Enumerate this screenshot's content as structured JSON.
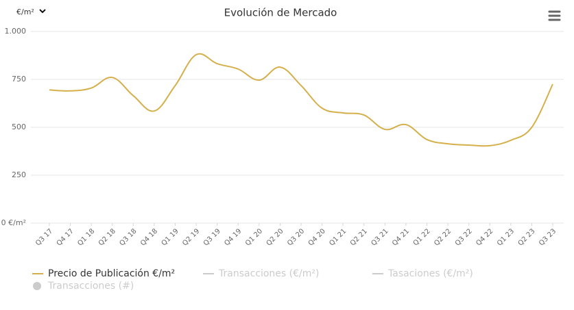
{
  "unit_selector": "€/m²",
  "chart_data": {
    "type": "line",
    "title": "Evolución de Mercado",
    "categories": [
      "Q3 17",
      "Q4 17",
      "Q1 18",
      "Q2 18",
      "Q3 18",
      "Q4 18",
      "Q1 19",
      "Q2 19",
      "Q3 19",
      "Q4 19",
      "Q1 20",
      "Q2 20",
      "Q3 20",
      "Q4 20",
      "Q1 21",
      "Q2 21",
      "Q3 21",
      "Q4 21",
      "Q1 22",
      "Q2 22",
      "Q3 22",
      "Q4 22",
      "Q1 23",
      "Q2 23",
      "Q3 23"
    ],
    "series": [
      {
        "name": "Precio de Publicación €/m²",
        "color": "#d4af4a",
        "values": [
          695,
          690,
          705,
          760,
          665,
          585,
          718,
          879,
          832,
          804,
          746,
          814,
          718,
          600,
          575,
          564,
          489,
          514,
          436,
          414,
          407,
          404,
          432,
          500,
          725
        ]
      }
    ],
    "inactive_legend": [
      {
        "name": "Transacciones (€/m²)",
        "marker": "line",
        "color": "#cccccc"
      },
      {
        "name": "Tasaciones (€/m²)",
        "marker": "line",
        "color": "#cccccc"
      },
      {
        "name": "Transacciones (#)",
        "marker": "circle",
        "color": "#cccccc"
      }
    ],
    "ylim": [
      0,
      1000
    ],
    "yticks": [
      {
        "value": 0,
        "label": "0 €/m²"
      },
      250,
      500,
      750,
      {
        "value": 1000,
        "label": "1.000"
      }
    ],
    "grid": true
  }
}
